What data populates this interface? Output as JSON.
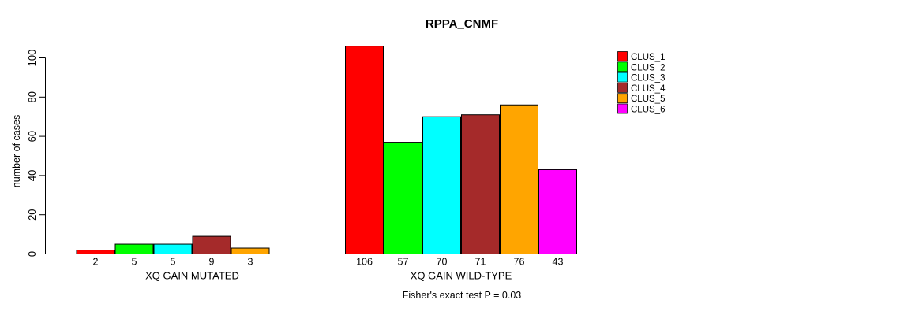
{
  "chart_data": {
    "type": "bar",
    "title": "RPPA_CNMF",
    "xlabel": "",
    "ylabel": "number of cases",
    "ylim": [
      0,
      106
    ],
    "yticks": [
      0,
      20,
      40,
      60,
      80,
      100
    ],
    "grid": false,
    "legend_position": "right",
    "categories": [
      "XQ GAIN MUTATED",
      "XQ GAIN WILD-TYPE"
    ],
    "series": [
      {
        "name": "CLUS_1",
        "color": "#ff0000",
        "values": [
          2,
          106
        ]
      },
      {
        "name": "CLUS_2",
        "color": "#00ff00",
        "values": [
          5,
          57
        ]
      },
      {
        "name": "CLUS_3",
        "color": "#00ffff",
        "values": [
          5,
          70
        ]
      },
      {
        "name": "CLUS_4",
        "color": "#a52a2a",
        "values": [
          9,
          71
        ]
      },
      {
        "name": "CLUS_5",
        "color": "#ffa500",
        "values": [
          3,
          76
        ]
      },
      {
        "name": "CLUS_6",
        "color": "#ff00ff",
        "values": [
          0,
          43
        ]
      }
    ],
    "bar_value_labels_shown": true,
    "zero_value_labels_hidden": true,
    "annotation": "Fisher's exact test P = 0.03",
    "axis_color": "#000000",
    "bar_border_color": "#000000"
  }
}
